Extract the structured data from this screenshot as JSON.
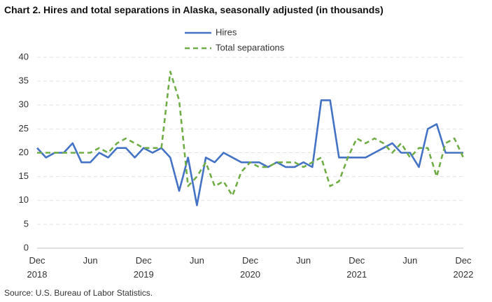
{
  "chart_data": {
    "type": "line",
    "title": "Chart 2. Hires and total separations in Alaska, seasonally adjusted (in thousands)",
    "source": "Source: U.S. Bureau of Labor Statistics.",
    "categories": [
      "Dec\n2018",
      null,
      null,
      null,
      null,
      null,
      "Jun",
      null,
      null,
      null,
      null,
      null,
      "Dec\n2019",
      null,
      null,
      null,
      null,
      null,
      "Jun",
      null,
      null,
      null,
      null,
      null,
      "Dec\n2020",
      null,
      null,
      null,
      null,
      null,
      "Jun",
      null,
      null,
      null,
      null,
      null,
      "Dec\n2021",
      null,
      null,
      null,
      null,
      null,
      "Jun",
      null,
      null,
      null,
      null,
      null,
      "Dec\n2022"
    ],
    "series": [
      {
        "name": "Hires",
        "color": "#4472c4",
        "style": "solid",
        "values": [
          21,
          19,
          20,
          20,
          22,
          18,
          18,
          20,
          19,
          21,
          21,
          19,
          21,
          20,
          21,
          19,
          12,
          19,
          9,
          19,
          18,
          20,
          19,
          18,
          18,
          18,
          17,
          18,
          17,
          17,
          18,
          17,
          31,
          31,
          19,
          19,
          19,
          19,
          20,
          21,
          22,
          20,
          20,
          17,
          25,
          26,
          20,
          20,
          20
        ]
      },
      {
        "name": "Total separations",
        "color": "#70ad47",
        "style": "dashed",
        "values": [
          20,
          20,
          20,
          20,
          20,
          20,
          20,
          21,
          20,
          22,
          23,
          22,
          21,
          21,
          21,
          37,
          31,
          13,
          15,
          18,
          13,
          14,
          11,
          16,
          18,
          17,
          17,
          18,
          18,
          18,
          17,
          18,
          19,
          13,
          14,
          19,
          23,
          22,
          23,
          22,
          20,
          22,
          19,
          21,
          21,
          15,
          22,
          23,
          19
        ]
      }
    ],
    "ylim": [
      0,
      40
    ],
    "yticks": [
      0,
      5,
      10,
      15,
      20,
      25,
      30,
      35,
      40
    ],
    "grid": true
  }
}
